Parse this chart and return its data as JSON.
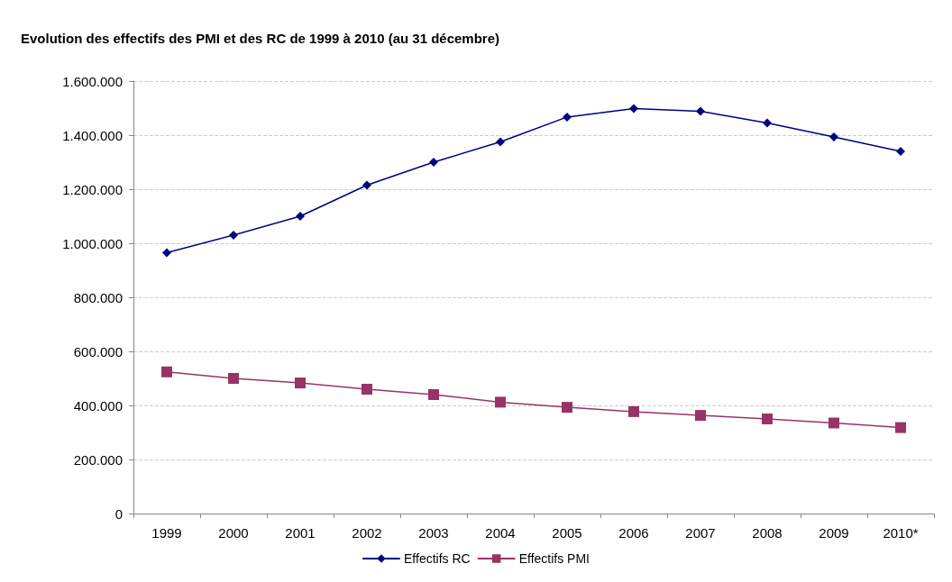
{
  "chart_data": {
    "type": "line",
    "title": "Evolution des effectifs des PMI et des RC de 1999 à 2010 (au 31 décembre)",
    "categories": [
      "1999",
      "2000",
      "2001",
      "2002",
      "2003",
      "2004",
      "2005",
      "2006",
      "2007",
      "2008",
      "2009",
      "2010*"
    ],
    "series": [
      {
        "name": "Effectifs RC",
        "color": "#000080",
        "marker": "diamond",
        "values": [
          965000,
          1030000,
          1100000,
          1215000,
          1300000,
          1375000,
          1467000,
          1498000,
          1488000,
          1445000,
          1393000,
          1340000
        ]
      },
      {
        "name": "Effectifs PMI",
        "color": "#993366",
        "marker": "square",
        "values": [
          524000,
          500000,
          483000,
          460000,
          440000,
          412000,
          393000,
          377000,
          363000,
          350000,
          335000,
          318000
        ]
      }
    ],
    "ylim": [
      0,
      1600000
    ],
    "yticks": [
      0,
      {
        "value": 200000,
        "label": "200.000"
      },
      {
        "value": 400000,
        "label": "400.000"
      },
      {
        "value": 600000,
        "label": "600.000"
      },
      {
        "value": 800000,
        "label": "800.000"
      },
      {
        "value": 1000000,
        "label": "1.000.000"
      },
      {
        "value": 1200000,
        "label": "1.200.000"
      },
      {
        "value": 1400000,
        "label": "1.400.000"
      },
      {
        "value": 1600000,
        "label": "1.600.000"
      }
    ],
    "grid": "y",
    "legend": "bottom",
    "line_style": "solid"
  }
}
